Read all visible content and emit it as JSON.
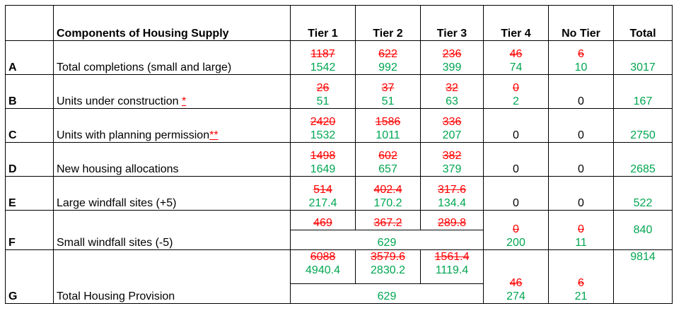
{
  "header": {
    "component": "Components of Housing Supply",
    "tier1": "Tier 1",
    "tier2": "Tier 2",
    "tier3": "Tier 3",
    "tier4": "Tier 4",
    "notier": "No Tier",
    "total": "Total"
  },
  "rows": {
    "A": {
      "label": "A",
      "text": "Total completions (small and large)",
      "t1_old": "1187",
      "t1_new": "1542",
      "t2_old": "622",
      "t2_new": "992",
      "t3_old": "236",
      "t3_new": "399",
      "t4_old": "46",
      "t4_new": "74",
      "nt_old": "6",
      "nt_new": "10",
      "total": "3017"
    },
    "B": {
      "label": "B",
      "text": "Units under construction ",
      "mark": "*",
      "t1_old": "26",
      "t1_new": "51",
      "t2_old": "37",
      "t2_new": "51",
      "t3_old": "32",
      "t3_new": "63",
      "t4_old": "0",
      "t4_new": "2",
      "notier": "0",
      "total": "167"
    },
    "C": {
      "label": "C",
      "text": "Units with planning permission",
      "mark": "**",
      "t1_old": "2420",
      "t1_new": "1532",
      "t2_old": "1586",
      "t2_new": "1011",
      "t3_old": "336",
      "t3_new": "207",
      "tier4": "0",
      "notier": "0",
      "total": "2750"
    },
    "D": {
      "label": "D",
      "text": "New housing allocations",
      "t1_old": "1498",
      "t1_new": "1649",
      "t2_old": "602",
      "t2_new": "657",
      "t3_old": "382",
      "t3_new": "379",
      "tier4": "0",
      "notier": "0",
      "total": "2685"
    },
    "E": {
      "label": "E",
      "text": "Large windfall sites (+5)",
      "t1_old": "514",
      "t1_new": "217.4",
      "t2_old": "402.4",
      "t2_new": "170.2",
      "t3_old": "317.6",
      "t3_new": "134.4",
      "tier4": "0",
      "notier": "0",
      "total": "522"
    },
    "F": {
      "label": "F",
      "text": "Small windfall sites (-5)",
      "t1_old": "469",
      "t2_old": "367.2",
      "t3_old": "289.8",
      "t123_new": "629",
      "t4_old": "0",
      "t4_new": "200",
      "nt_old": "0",
      "nt_new": "11",
      "total": "840"
    },
    "G": {
      "label": "G",
      "text": "Total Housing Provision",
      "t1_old": "6088",
      "t1_new": "4940.4",
      "t2_old": "3579.6",
      "t2_new": "2830.2",
      "t3_old": "1561.4",
      "t3_new": "1119.4",
      "t123_extra": "629",
      "t4_old": "46",
      "t4_new": "274",
      "nt_old": "6",
      "nt_new": "21",
      "total": "9814"
    }
  },
  "colors": {
    "old": "#ff0000",
    "new": "#00a651"
  }
}
